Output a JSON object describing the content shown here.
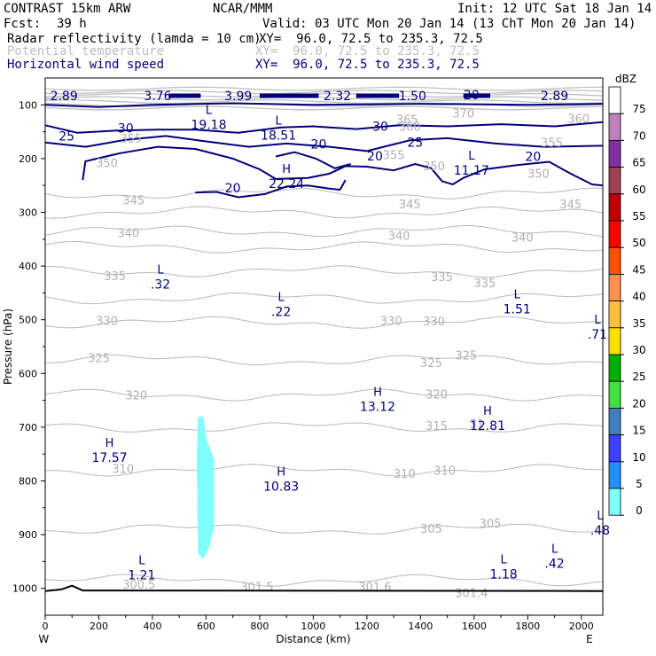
{
  "header": {
    "title": "CONTRAST 15km ARW",
    "org": "NCAR/MMM",
    "init": "Init: 12 UTC Sat 18 Jan 14",
    "fcst_label": "Fcst:",
    "fcst_value": "39 h",
    "valid": "Valid: 03 UTC Mon 20 Jan 14 (13 ChT Mon 20 Jan 14)",
    "fields": [
      {
        "name": "Radar reflectivity (lamda = 10 cm)",
        "xy": "XY=  96.0, 72.5 to 235.3, 72.5"
      },
      {
        "name": "Potential temperature",
        "xy": "XY=  96.0, 72.5 to 235.3, 72.5"
      },
      {
        "name": "Horizontal wind speed",
        "xy": "XY=  96.0, 72.5 to 235.3, 72.5"
      }
    ]
  },
  "chart_data": {
    "type": "cross-section",
    "xlabel": "Distance (km)",
    "ylabel": "Pressure (hPa)",
    "xlim": [
      0,
      2080
    ],
    "ylim": [
      1050,
      50
    ],
    "x_ticks": [
      0,
      200,
      400,
      600,
      800,
      1000,
      1200,
      1400,
      1600,
      1800,
      2000
    ],
    "y_ticks": [
      100,
      200,
      300,
      400,
      500,
      600,
      700,
      800,
      900,
      1000
    ],
    "west_label": "W",
    "east_label": "E",
    "colorbar": {
      "unit": "dBZ",
      "levels": [
        75,
        70,
        65,
        60,
        55,
        50,
        45,
        40,
        35,
        30,
        25,
        20,
        15,
        10,
        5,
        0
      ],
      "colors": [
        "#ffffff",
        "#c080c0",
        "#8030a0",
        "#a04050",
        "#c00000",
        "#ff0000",
        "#ff5000",
        "#ff9050",
        "#ffc040",
        "#ffe000",
        "#00b000",
        "#40e040",
        "#4080c0",
        "#4040ff",
        "#2090ff",
        "#80ffff"
      ]
    },
    "theta_contour_labels": [
      {
        "x": 320,
        "p": 162,
        "text": "355"
      },
      {
        "x": 230,
        "p": 208,
        "text": "350"
      },
      {
        "x": 1560,
        "p": 115,
        "text": "370"
      },
      {
        "x": 1350,
        "p": 127,
        "text": "365"
      },
      {
        "x": 1360,
        "p": 140,
        "text": "360"
      },
      {
        "x": 1990,
        "p": 125,
        "text": "360"
      },
      {
        "x": 1300,
        "p": 193,
        "text": "355"
      },
      {
        "x": 1890,
        "p": 170,
        "text": "355"
      },
      {
        "x": 1450,
        "p": 213,
        "text": "350"
      },
      {
        "x": 1840,
        "p": 227,
        "text": "350"
      },
      {
        "x": 330,
        "p": 277,
        "text": "345"
      },
      {
        "x": 1360,
        "p": 284,
        "text": "345"
      },
      {
        "x": 1960,
        "p": 284,
        "text": "345"
      },
      {
        "x": 310,
        "p": 338,
        "text": "340"
      },
      {
        "x": 1320,
        "p": 343,
        "text": "340"
      },
      {
        "x": 1780,
        "p": 346,
        "text": "340"
      },
      {
        "x": 260,
        "p": 418,
        "text": "335"
      },
      {
        "x": 1480,
        "p": 420,
        "text": "335"
      },
      {
        "x": 1640,
        "p": 431,
        "text": "335"
      },
      {
        "x": 230,
        "p": 501,
        "text": "330"
      },
      {
        "x": 1290,
        "p": 501,
        "text": "330"
      },
      {
        "x": 1450,
        "p": 502,
        "text": "330"
      },
      {
        "x": 200,
        "p": 571,
        "text": "325"
      },
      {
        "x": 1440,
        "p": 580,
        "text": "325"
      },
      {
        "x": 1570,
        "p": 566,
        "text": "325"
      },
      {
        "x": 340,
        "p": 640,
        "text": "320"
      },
      {
        "x": 1460,
        "p": 638,
        "text": "320"
      },
      {
        "x": 1460,
        "p": 697,
        "text": "315"
      },
      {
        "x": 1610,
        "p": 693,
        "text": "31"
      },
      {
        "x": 290,
        "p": 777,
        "text": "310"
      },
      {
        "x": 1340,
        "p": 786,
        "text": "310"
      },
      {
        "x": 1490,
        "p": 780,
        "text": "310"
      },
      {
        "x": 1440,
        "p": 888,
        "text": "305"
      },
      {
        "x": 1660,
        "p": 878,
        "text": "305"
      },
      {
        "x": 350,
        "p": 992,
        "text": "300.5"
      },
      {
        "x": 790,
        "p": 996,
        "text": "301.5"
      },
      {
        "x": 1230,
        "p": 996,
        "text": "301.6"
      },
      {
        "x": 1590,
        "p": 1008,
        "text": "301.4"
      }
    ],
    "wind_contour_labels": [
      {
        "x": 70,
        "p": 83,
        "text": "2.89"
      },
      {
        "x": 420,
        "p": 83,
        "text": "3.76"
      },
      {
        "x": 720,
        "p": 83,
        "text": "3.99"
      },
      {
        "x": 1090,
        "p": 83,
        "text": "2.32"
      },
      {
        "x": 1370,
        "p": 83,
        "text": "1.50"
      },
      {
        "x": 1590,
        "p": 81,
        "text": "20"
      },
      {
        "x": 1900,
        "p": 83,
        "text": "2.89"
      },
      {
        "x": 80,
        "p": 158,
        "text": "25"
      },
      {
        "x": 300,
        "p": 143,
        "text": "30"
      },
      {
        "x": 1020,
        "p": 173,
        "text": "20"
      },
      {
        "x": 1250,
        "p": 140,
        "text": "30"
      },
      {
        "x": 1380,
        "p": 170,
        "text": "25"
      },
      {
        "x": 1230,
        "p": 195,
        "text": "20"
      },
      {
        "x": 1820,
        "p": 196,
        "text": "20"
      },
      {
        "x": 700,
        "p": 255,
        "text": "20"
      }
    ],
    "extrema": [
      {
        "x": 610,
        "p": 130,
        "sym": "L",
        "val": "19.18"
      },
      {
        "x": 870,
        "p": 150,
        "sym": "L",
        "val": "18.51"
      },
      {
        "x": 900,
        "p": 240,
        "sym": "H",
        "val": "22.24"
      },
      {
        "x": 1590,
        "p": 215,
        "sym": "L",
        "val": "11.17"
      },
      {
        "x": 430,
        "p": 427,
        "sym": "L",
        "val": ".32"
      },
      {
        "x": 880,
        "p": 478,
        "sym": "L",
        "val": ".22"
      },
      {
        "x": 1760,
        "p": 473,
        "sym": "L",
        "val": "1.51"
      },
      {
        "x": 2060,
        "p": 520,
        "sym": "L",
        "val": ".71"
      },
      {
        "x": 1240,
        "p": 655,
        "sym": "H",
        "val": "13.12"
      },
      {
        "x": 1650,
        "p": 690,
        "sym": "H",
        "val": "12.81"
      },
      {
        "x": 240,
        "p": 750,
        "sym": "H",
        "val": "17.57"
      },
      {
        "x": 880,
        "p": 803,
        "sym": "H",
        "val": "10.83"
      },
      {
        "x": 2070,
        "p": 885,
        "sym": "L",
        "val": ".48"
      },
      {
        "x": 1900,
        "p": 947,
        "sym": "L",
        "val": ".42"
      },
      {
        "x": 360,
        "p": 968,
        "sym": "L",
        "val": "1.21"
      },
      {
        "x": 1710,
        "p": 967,
        "sym": "L",
        "val": "1.18"
      }
    ],
    "reflectivity_cell": {
      "value_dbz": 5,
      "x_range": [
        560,
        630
      ],
      "p_range": [
        680,
        945
      ]
    }
  }
}
